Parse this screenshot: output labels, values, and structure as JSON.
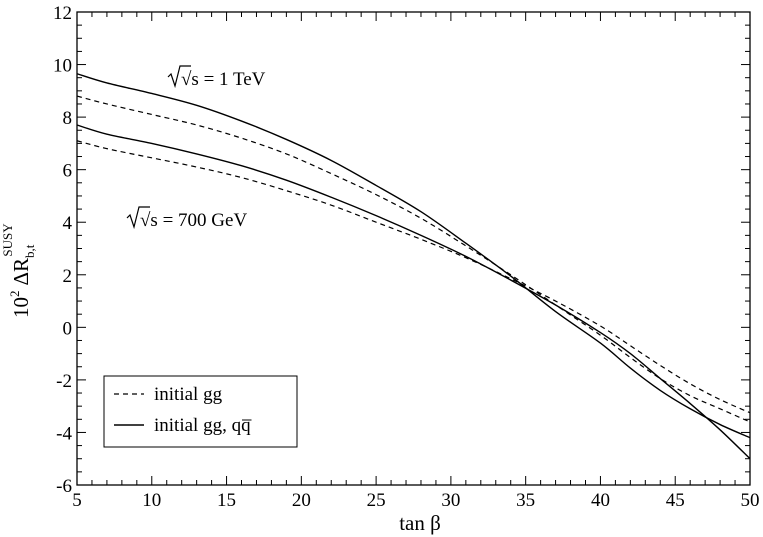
{
  "chart_data": {
    "type": "line",
    "xlabel": "tan β",
    "ylabel": {
      "prefix": "10",
      "exponent": "2",
      "symbol": "ΔR",
      "subscript": "b,t",
      "superscript": "SUSY"
    },
    "xlim": [
      5,
      50
    ],
    "ylim": [
      -6,
      12
    ],
    "x_ticks": [
      5,
      10,
      15,
      20,
      25,
      30,
      35,
      40,
      45,
      50
    ],
    "y_ticks": [
      -6,
      -4,
      -2,
      0,
      2,
      4,
      6,
      8,
      10,
      12
    ],
    "grid": false,
    "legend": {
      "placement": "lower-left",
      "entries": [
        {
          "label": "initial gg",
          "style": "dashed"
        },
        {
          "label": "initial gg, qq̅",
          "style": "solid"
        }
      ]
    },
    "annotations": [
      {
        "text": "√s = 1 TeV",
        "x": 10.6,
        "y": 9.4
      },
      {
        "text": "√s = 700 GeV",
        "x": 8.4,
        "y": 4.0
      }
    ],
    "series": [
      {
        "energy": "1 TeV",
        "process": "initial gg, qq̅",
        "style": "solid",
        "x": [
          5,
          7,
          10,
          13,
          16,
          19,
          22,
          25,
          28,
          31,
          34,
          37,
          40,
          42,
          44,
          46,
          48,
          50
        ],
        "y": [
          9.65,
          9.3,
          8.9,
          8.45,
          7.85,
          7.15,
          6.35,
          5.4,
          4.4,
          3.2,
          1.95,
          0.6,
          -0.6,
          -1.55,
          -2.4,
          -3.1,
          -3.7,
          -4.2
        ]
      },
      {
        "energy": "1 TeV",
        "process": "initial gg",
        "style": "dashed",
        "x": [
          5,
          7,
          10,
          13,
          16,
          19,
          22,
          25,
          28,
          31,
          34,
          37,
          40,
          42,
          44,
          46,
          48,
          50
        ],
        "y": [
          8.8,
          8.5,
          8.1,
          7.7,
          7.2,
          6.6,
          5.85,
          5.05,
          4.15,
          3.1,
          2.0,
          0.85,
          -0.3,
          -1.15,
          -1.95,
          -2.6,
          -3.1,
          -3.6
        ]
      },
      {
        "energy": "700 GeV",
        "process": "initial gg, qq̅",
        "style": "solid",
        "x": [
          5,
          7,
          10,
          13,
          16,
          19,
          22,
          25,
          28,
          31,
          34,
          37,
          40,
          42,
          44,
          46,
          48,
          50
        ],
        "y": [
          7.7,
          7.35,
          7.0,
          6.6,
          6.15,
          5.6,
          4.95,
          4.25,
          3.5,
          2.7,
          1.8,
          0.85,
          -0.2,
          -1.0,
          -1.95,
          -2.9,
          -3.9,
          -5.0
        ]
      },
      {
        "energy": "700 GeV",
        "process": "initial gg",
        "style": "dashed",
        "x": [
          5,
          7,
          10,
          13,
          16,
          19,
          22,
          25,
          28,
          31,
          34,
          37,
          40,
          42,
          44,
          46,
          48,
          50
        ],
        "y": [
          7.1,
          6.8,
          6.45,
          6.1,
          5.7,
          5.2,
          4.65,
          4.0,
          3.35,
          2.65,
          1.85,
          1.0,
          0.05,
          -0.7,
          -1.45,
          -2.15,
          -2.75,
          -3.25
        ]
      }
    ]
  }
}
